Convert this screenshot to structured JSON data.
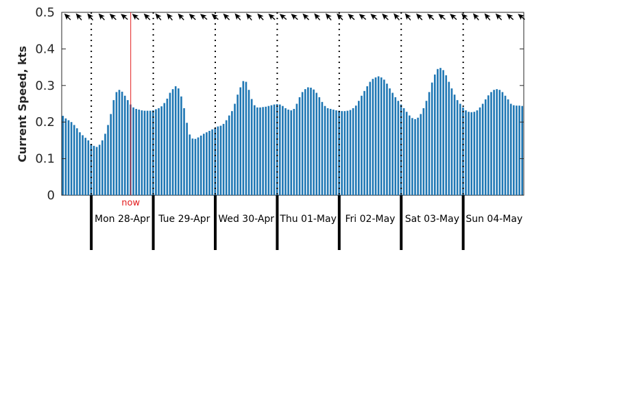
{
  "chart_data": {
    "type": "bar",
    "ylabel": "Current Speed, kts",
    "ylim": [
      0,
      0.5
    ],
    "yticks": [
      "0",
      "0.1",
      "0.2",
      "0.3",
      "0.4",
      "0.5"
    ],
    "grid": false,
    "bar_color": "#1f77b4",
    "now_color": "#e31a1c",
    "now_label": "now",
    "now_index": 24,
    "day_labels": [
      "Mon 28-Apr",
      "Tue 29-Apr",
      "Wed 30-Apr",
      "Thu 01-May",
      "Fri 02-May",
      "Sat 03-May",
      "Sun 04-May"
    ],
    "midnight_indices": [
      10,
      32,
      54,
      76,
      98,
      120,
      142
    ],
    "hours_per_bar": 1,
    "arrow_count": 41,
    "values": [
      0.217,
      0.21,
      0.205,
      0.2,
      0.192,
      0.183,
      0.172,
      0.164,
      0.157,
      0.15,
      0.14,
      0.135,
      0.132,
      0.138,
      0.15,
      0.168,
      0.192,
      0.222,
      0.26,
      0.282,
      0.288,
      0.283,
      0.272,
      0.26,
      0.248,
      0.24,
      0.236,
      0.234,
      0.232,
      0.231,
      0.231,
      0.231,
      0.232,
      0.235,
      0.238,
      0.243,
      0.252,
      0.264,
      0.28,
      0.29,
      0.298,
      0.292,
      0.27,
      0.238,
      0.198,
      0.166,
      0.155,
      0.154,
      0.158,
      0.163,
      0.168,
      0.172,
      0.176,
      0.18,
      0.184,
      0.188,
      0.19,
      0.195,
      0.205,
      0.218,
      0.23,
      0.25,
      0.275,
      0.295,
      0.312,
      0.31,
      0.288,
      0.263,
      0.246,
      0.24,
      0.24,
      0.241,
      0.242,
      0.244,
      0.246,
      0.248,
      0.249,
      0.248,
      0.244,
      0.238,
      0.234,
      0.232,
      0.236,
      0.25,
      0.268,
      0.282,
      0.29,
      0.295,
      0.294,
      0.289,
      0.28,
      0.268,
      0.255,
      0.244,
      0.238,
      0.236,
      0.234,
      0.232,
      0.231,
      0.23,
      0.23,
      0.231,
      0.233,
      0.238,
      0.245,
      0.258,
      0.272,
      0.285,
      0.298,
      0.31,
      0.318,
      0.322,
      0.325,
      0.322,
      0.316,
      0.305,
      0.292,
      0.28,
      0.268,
      0.258,
      0.248,
      0.238,
      0.228,
      0.218,
      0.211,
      0.208,
      0.212,
      0.222,
      0.238,
      0.258,
      0.282,
      0.308,
      0.33,
      0.345,
      0.348,
      0.342,
      0.328,
      0.31,
      0.292,
      0.275,
      0.26,
      0.25,
      0.24,
      0.232,
      0.228,
      0.227,
      0.228,
      0.232,
      0.24,
      0.25,
      0.262,
      0.273,
      0.282,
      0.288,
      0.29,
      0.288,
      0.282,
      0.272,
      0.262,
      0.25,
      0.246,
      0.245,
      0.245,
      0.244
    ]
  }
}
